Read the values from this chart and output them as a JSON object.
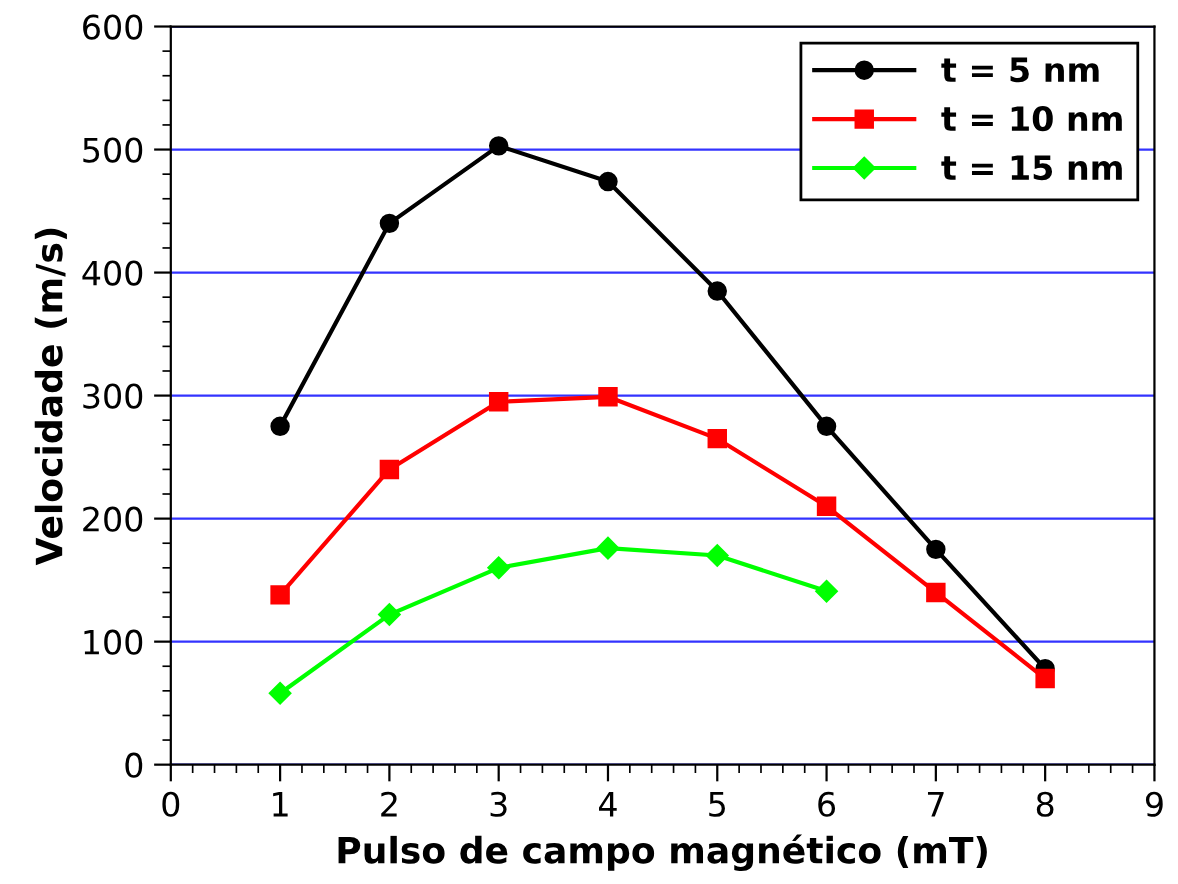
{
  "chart_data": {
    "type": "line",
    "xlabel": "Pulso de campo magnético (mT)",
    "ylabel": "Velocidade (m/s)",
    "xlim": [
      0,
      9
    ],
    "xticks": [
      0,
      1,
      2,
      3,
      4,
      5,
      6,
      7,
      8,
      9
    ],
    "ylim": [
      0,
      600
    ],
    "yticks": [
      0,
      100,
      200,
      300,
      400,
      500,
      600
    ],
    "grid": "y",
    "legend": "top right",
    "series": [
      {
        "name": "t = 5 nm",
        "color": "#000000",
        "marker": "circle",
        "x": [
          1,
          2,
          3,
          4,
          5,
          6,
          7,
          8
        ],
        "values": [
          275,
          440,
          503,
          474,
          385,
          275,
          175,
          78
        ]
      },
      {
        "name": "t = 10 nm",
        "color": "#ff0000",
        "marker": "square",
        "x": [
          1,
          2,
          3,
          4,
          5,
          6,
          7,
          8
        ],
        "values": [
          138,
          240,
          295,
          299,
          265,
          210,
          140,
          70
        ]
      },
      {
        "name": "t = 15 nm",
        "color": "#00ff00",
        "marker": "diamond",
        "x": [
          1,
          2,
          3,
          4,
          5,
          6
        ],
        "values": [
          58,
          122,
          160,
          176,
          170,
          141
        ]
      }
    ]
  }
}
